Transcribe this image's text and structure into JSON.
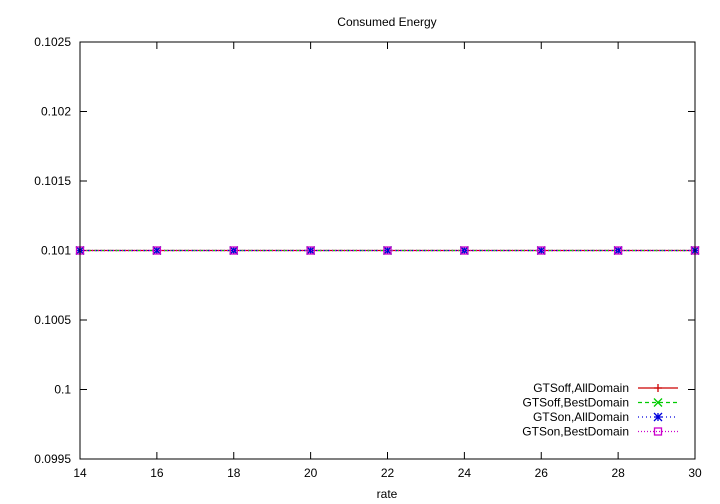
{
  "chart_data": {
    "type": "line",
    "title": "Consumed Energy",
    "xlabel": "rate",
    "ylabel": "",
    "x": [
      14,
      16,
      18,
      20,
      22,
      24,
      26,
      28,
      30
    ],
    "xlim": [
      14,
      30
    ],
    "ylim": [
      0.0995,
      0.1025
    ],
    "x_ticks": [
      "14",
      "16",
      "18",
      "20",
      "22",
      "24",
      "26",
      "28",
      "30"
    ],
    "y_ticks": [
      "0.0995",
      "0.1",
      "0.1005",
      "0.101",
      "0.1015",
      "0.102",
      "0.1025"
    ],
    "grid": false,
    "legend_position": "bottom-right",
    "series": [
      {
        "name": "GTSoff,AllDomain",
        "color": "#cc0000",
        "marker": "plus",
        "dash": "",
        "values": [
          0.101,
          0.101,
          0.101,
          0.101,
          0.101,
          0.101,
          0.101,
          0.101,
          0.101
        ]
      },
      {
        "name": "GTSoff,BestDomain",
        "color": "#00cc00",
        "marker": "cross",
        "dash": "4,3",
        "values": [
          0.101,
          0.101,
          0.101,
          0.101,
          0.101,
          0.101,
          0.101,
          0.101,
          0.101
        ]
      },
      {
        "name": "GTSon,AllDomain",
        "color": "#0000dd",
        "marker": "star",
        "dash": "1,3",
        "values": [
          0.101,
          0.101,
          0.101,
          0.101,
          0.101,
          0.101,
          0.101,
          0.101,
          0.101
        ]
      },
      {
        "name": "GTSon,BestDomain",
        "color": "#cc00cc",
        "marker": "square",
        "dash": "1,2",
        "values": [
          0.101,
          0.101,
          0.101,
          0.101,
          0.101,
          0.101,
          0.101,
          0.101,
          0.101
        ]
      }
    ]
  }
}
